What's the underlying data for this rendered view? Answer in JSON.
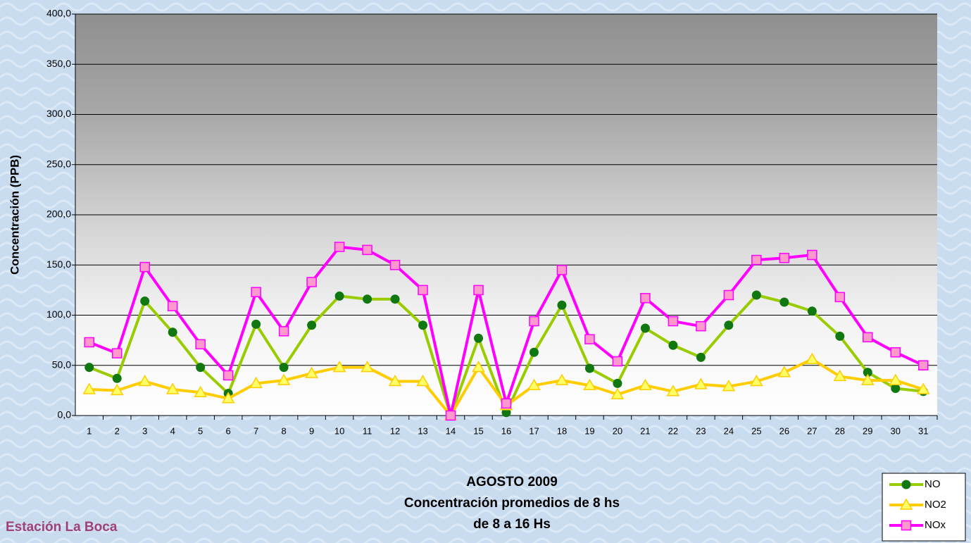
{
  "chart_data": {
    "type": "line",
    "title": "AGOSTO 2009",
    "subtitle": "Concentración promedios de 8 hs",
    "subtitle2": "de 8 a 16 Hs",
    "station": "Estación La Boca",
    "y_label": "Concentración (PPB)",
    "categories": [
      1,
      2,
      3,
      4,
      5,
      6,
      7,
      8,
      9,
      10,
      11,
      12,
      13,
      14,
      15,
      16,
      17,
      18,
      19,
      20,
      21,
      22,
      23,
      24,
      25,
      26,
      27,
      28,
      29,
      30,
      31
    ],
    "series": [
      {
        "name": "NO",
        "color": "#99cc00",
        "marker": "circle",
        "marker_color": "#117711",
        "values": [
          48,
          37,
          114,
          83,
          48,
          22,
          91,
          48,
          90,
          119,
          116,
          116,
          90,
          0,
          77,
          3,
          63,
          110,
          47,
          32,
          87,
          70,
          58,
          90,
          120,
          113,
          104,
          79,
          43,
          27,
          24
        ]
      },
      {
        "name": "NO2",
        "color": "#ffcc00",
        "marker": "triangle",
        "marker_color": "#ffff66",
        "values": [
          26,
          25,
          34,
          26,
          23,
          17,
          32,
          35,
          42,
          48,
          48,
          34,
          34,
          0,
          48,
          10,
          30,
          35,
          30,
          21,
          30,
          24,
          31,
          29,
          34,
          43,
          56,
          39,
          35,
          35,
          26
        ]
      },
      {
        "name": "NOx",
        "color": "#ff00ff",
        "marker": "square",
        "marker_color": "#ff99cc",
        "values": [
          73,
          62,
          148,
          109,
          71,
          40,
          123,
          84,
          133,
          168,
          165,
          150,
          125,
          0,
          125,
          12,
          94,
          145,
          76,
          54,
          117,
          94,
          89,
          120,
          155,
          157,
          160,
          118,
          78,
          63,
          50
        ]
      }
    ],
    "ylim": [
      0,
      400
    ],
    "yticks": [
      {
        "value": 0,
        "label": "0,0"
      },
      {
        "value": 50,
        "label": "50,0"
      },
      {
        "value": 100,
        "label": "100,0"
      },
      {
        "value": 150,
        "label": "150,0"
      },
      {
        "value": 200,
        "label": "200,0"
      },
      {
        "value": 250,
        "label": "250,0"
      },
      {
        "value": 300,
        "label": "300,0"
      },
      {
        "value": 350,
        "label": "350,0"
      },
      {
        "value": 400,
        "label": "400,0"
      }
    ],
    "grid": true,
    "legend": "bottom-right"
  }
}
